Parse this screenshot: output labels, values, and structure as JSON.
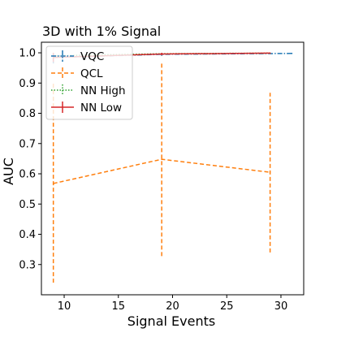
{
  "chart_data": {
    "type": "line",
    "title": "3D with 1% Signal",
    "xlabel": "Signal Events",
    "ylabel": "AUC",
    "xlim": [
      7.9,
      32.1
    ],
    "ylim": [
      0.2,
      1.035
    ],
    "xticks": [
      10,
      15,
      20,
      25,
      30
    ],
    "yticks": [
      0.3,
      0.4,
      0.5,
      0.6,
      0.7,
      0.8,
      0.9,
      1.0
    ],
    "xtick_labels": [
      "10",
      "15",
      "20",
      "25",
      "30"
    ],
    "ytick_labels": [
      "0.3",
      "0.4",
      "0.5",
      "0.6",
      "0.7",
      "0.8",
      "0.9",
      "1.0"
    ],
    "grid": false,
    "legend": "upper-left",
    "series": [
      {
        "name": "VQC",
        "color": "#1f77b4",
        "linestyle": "dashdot",
        "x": [
          9,
          19,
          31
        ],
        "y": [
          0.985,
          0.995,
          0.998
        ],
        "err_low": [
          0.965,
          0.99,
          0.996
        ],
        "err_high": [
          1.0,
          1.0,
          1.0
        ]
      },
      {
        "name": "QCL",
        "color": "#ff7f0e",
        "linestyle": "dashed",
        "x": [
          9,
          19,
          29
        ],
        "y": [
          0.568,
          0.648,
          0.605
        ],
        "err_low": [
          0.24,
          0.328,
          0.34
        ],
        "err_high": [
          0.9,
          0.968,
          0.868
        ]
      },
      {
        "name": "NN High",
        "color": "#2ca02c",
        "linestyle": "dotted",
        "x": [
          9,
          19,
          29
        ],
        "y": [
          0.99,
          0.997,
          0.999
        ],
        "err_low": [
          0.98,
          0.994,
          0.998
        ],
        "err_high": [
          1.0,
          1.0,
          1.0
        ]
      },
      {
        "name": "NN Low",
        "color": "#d62728",
        "linestyle": "solid",
        "x": [
          9,
          19,
          29
        ],
        "y": [
          0.985,
          0.996,
          0.999
        ],
        "err_low": [
          0.97,
          0.992,
          0.997
        ],
        "err_high": [
          1.0,
          1.0,
          1.0
        ]
      }
    ]
  }
}
